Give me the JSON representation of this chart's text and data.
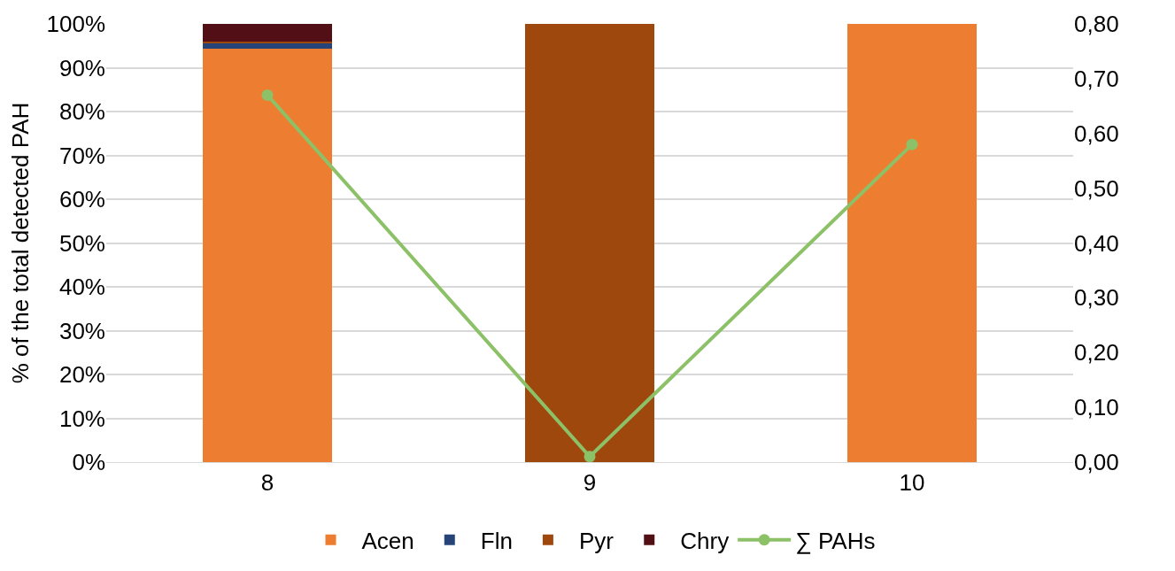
{
  "chart_data": {
    "type": "bar",
    "stacked": true,
    "ylabel": "% of the total detected PAH",
    "categories": [
      "8",
      "9",
      "10"
    ],
    "series": [
      {
        "name": "Acen",
        "color": "#ed7d31",
        "values": [
          94.4,
          0,
          100
        ]
      },
      {
        "name": "Fln",
        "color": "#264478",
        "values": [
          1.1,
          0,
          0
        ]
      },
      {
        "name": "Pyr",
        "color": "#9e480e",
        "values": [
          0.5,
          100,
          0
        ]
      },
      {
        "name": "Chry",
        "color": "#521016",
        "values": [
          4.0,
          0,
          0
        ]
      },
      {
        "name": "∑ PAHs",
        "type": "line",
        "axis": "y2",
        "color": "#8cc168",
        "marker": "circle",
        "values": [
          0.67,
          0.01,
          0.58
        ]
      }
    ],
    "ylim": [
      0,
      100
    ],
    "yticks": [
      {
        "value": 0,
        "label": "0%"
      },
      {
        "value": 10,
        "label": "10%"
      },
      {
        "value": 20,
        "label": "20%"
      },
      {
        "value": 30,
        "label": "30%"
      },
      {
        "value": 40,
        "label": "40%"
      },
      {
        "value": 50,
        "label": "50%"
      },
      {
        "value": 60,
        "label": "60%"
      },
      {
        "value": 70,
        "label": "70%"
      },
      {
        "value": 80,
        "label": "80%"
      },
      {
        "value": 90,
        "label": "90%"
      },
      {
        "value": 100,
        "label": "100%"
      }
    ],
    "y2lim": [
      0,
      0.8
    ],
    "y2ticks": [
      {
        "value": 0,
        "label": "0,00"
      },
      {
        "value": 0.1,
        "label": "0,10"
      },
      {
        "value": 0.2,
        "label": "0,20"
      },
      {
        "value": 0.3,
        "label": "0,30"
      },
      {
        "value": 0.4,
        "label": "0,40"
      },
      {
        "value": 0.5,
        "label": "0,50"
      },
      {
        "value": 0.6,
        "label": "0,60"
      },
      {
        "value": 0.7,
        "label": "0,70"
      },
      {
        "value": 0.8,
        "label": "0,80"
      }
    ],
    "grid": "y",
    "legend": "bottom"
  }
}
